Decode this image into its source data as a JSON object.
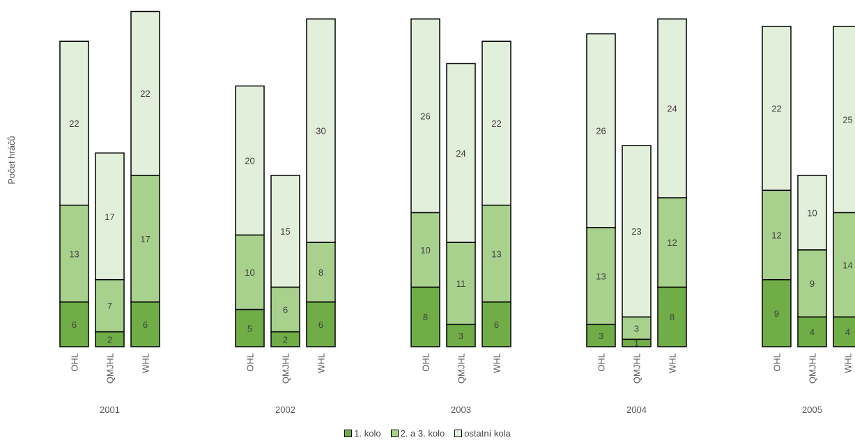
{
  "chart_data": {
    "type": "bar",
    "stacked": true,
    "ylabel": "Počet hráčů",
    "groups": [
      "2001",
      "2002",
      "2003",
      "2004",
      "2005"
    ],
    "categories": [
      "OHL",
      "QMJHL",
      "WHL"
    ],
    "series": [
      {
        "name": "1. kolo",
        "color": "#70ad47",
        "values": [
          [
            6,
            2,
            6
          ],
          [
            5,
            2,
            6
          ],
          [
            8,
            3,
            6
          ],
          [
            3,
            1,
            8
          ],
          [
            9,
            4,
            4
          ]
        ]
      },
      {
        "name": "2. a 3. kolo",
        "color": "#a9d18e",
        "values": [
          [
            13,
            7,
            17
          ],
          [
            10,
            6,
            8
          ],
          [
            10,
            11,
            13
          ],
          [
            13,
            3,
            12
          ],
          [
            12,
            9,
            14
          ]
        ]
      },
      {
        "name": "ostatní kola",
        "color": "#e2efda",
        "values": [
          [
            22,
            17,
            22
          ],
          [
            20,
            15,
            30
          ],
          [
            26,
            24,
            22
          ],
          [
            26,
            23,
            24
          ],
          [
            22,
            10,
            25
          ]
        ]
      }
    ],
    "grid": false,
    "legend_position": "bottom"
  }
}
